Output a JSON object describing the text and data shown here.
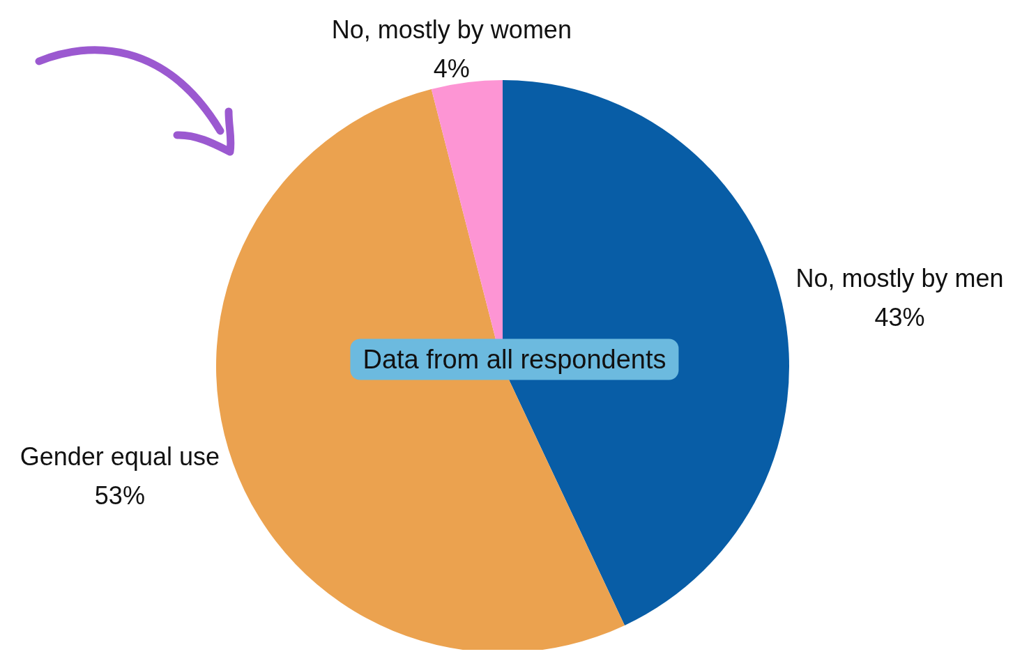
{
  "chart_data": {
    "type": "pie",
    "categories": [
      "No, mostly by men",
      "Gender equal use",
      "No, mostly by women"
    ],
    "values": [
      43,
      53,
      4
    ],
    "colors": [
      "#085da6",
      "#eba24f",
      "#fd95d4"
    ],
    "value_labels": [
      "43%",
      "53%",
      "4%"
    ],
    "annotations": [
      "Data from all respondents"
    ]
  }
}
